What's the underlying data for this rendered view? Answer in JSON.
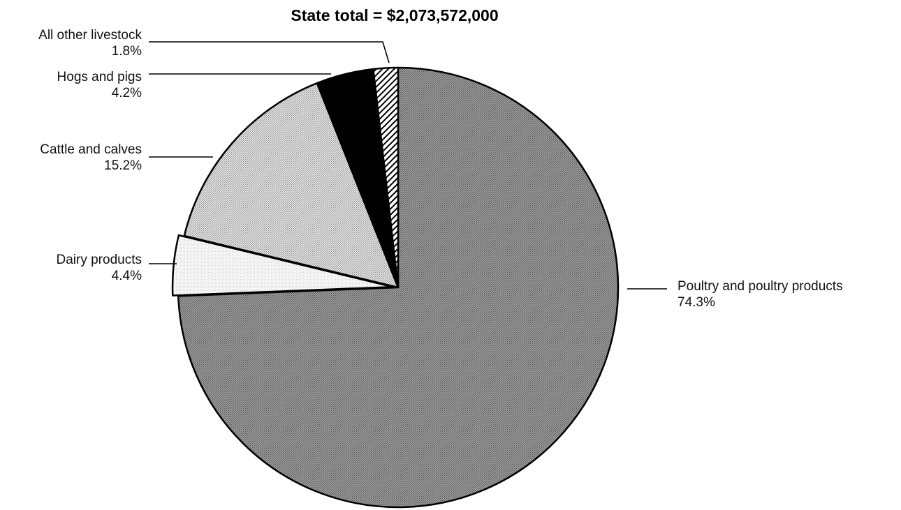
{
  "chart_data": {
    "type": "pie",
    "title": "State total = $2,073,572,000",
    "slices": [
      {
        "name": "Poultry and poultry products",
        "value": 74.3,
        "label": "74.3%",
        "color": "#8a8a8a"
      },
      {
        "name": "Dairy products",
        "value": 4.4,
        "label": "4.4%",
        "color": "#f2f2f2"
      },
      {
        "name": "Cattle and calves",
        "value": 15.2,
        "label": "15.2%",
        "color": "#cfcfcf"
      },
      {
        "name": "Hogs and pigs",
        "value": 4.2,
        "label": "4.2%",
        "color": "#000000"
      },
      {
        "name": "All other livestock",
        "value": 1.8,
        "label": "1.8%",
        "color": "#ffffff",
        "pattern": "diagonal-hatch"
      }
    ],
    "start": "top, clockwise",
    "legend": "none (leader-line labels)"
  }
}
